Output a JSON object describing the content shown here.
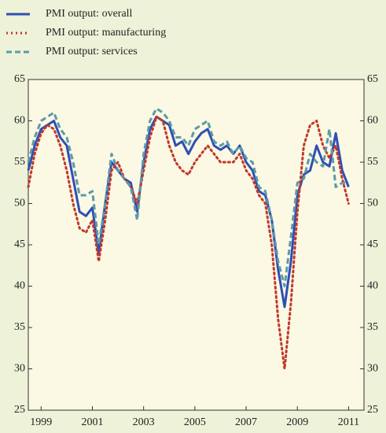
{
  "chart_data": {
    "type": "line",
    "x": [
      1999.0,
      1999.25,
      1999.5,
      1999.75,
      2000.0,
      2000.25,
      2000.5,
      2000.75,
      2001.0,
      2001.25,
      2001.5,
      2001.75,
      2002.0,
      2002.25,
      2002.5,
      2002.75,
      2003.0,
      2003.25,
      2003.5,
      2003.75,
      2004.0,
      2004.25,
      2004.5,
      2004.75,
      2005.0,
      2005.25,
      2005.5,
      2005.75,
      2006.0,
      2006.25,
      2006.5,
      2006.75,
      2007.0,
      2007.25,
      2007.5,
      2007.75,
      2008.0,
      2008.25,
      2008.5,
      2008.75,
      2009.0,
      2009.25,
      2009.5,
      2009.75,
      2010.0,
      2010.25,
      2010.5,
      2010.75,
      2011.0,
      2011.25,
      2011.5
    ],
    "series": [
      {
        "name": "PMI output: overall",
        "color": "#2f4fb5",
        "style": "solid",
        "values": [
          54,
          57,
          59,
          59.5,
          60,
          58,
          57,
          53,
          49,
          48.5,
          49.5,
          44,
          50,
          55,
          54,
          53,
          52.5,
          49,
          55,
          59,
          60.5,
          60,
          59.5,
          57,
          57.5,
          56,
          57.5,
          58.5,
          59,
          57,
          56.5,
          57,
          56,
          57,
          55,
          54,
          51.5,
          51,
          48,
          42,
          37.5,
          43,
          51,
          53.5,
          54,
          57,
          55,
          54.5,
          58.5,
          54,
          52
        ]
      },
      {
        "name": "PMI output: manufacturing",
        "color": "#c0392b",
        "style": "dotted",
        "values": [
          52,
          56,
          58.5,
          59.5,
          59,
          57,
          54,
          50,
          47,
          46.5,
          48,
          43,
          48,
          54,
          55,
          53,
          52,
          50,
          54,
          58,
          60.5,
          60,
          57,
          55,
          54,
          53.5,
          55,
          56,
          57,
          56,
          55,
          55,
          55,
          56,
          54,
          53,
          51,
          50,
          45,
          36,
          30,
          38,
          49,
          57,
          59.5,
          60,
          57,
          55.5,
          57,
          53,
          50
        ]
      },
      {
        "name": "PMI output: services",
        "color": "#5b9aa8",
        "style": "dashed",
        "values": [
          55,
          58,
          60,
          60.5,
          61,
          59,
          58,
          55,
          51,
          51,
          51.5,
          45,
          50,
          56,
          54,
          53,
          52,
          48,
          56,
          60,
          61.5,
          61,
          60,
          58,
          58,
          57,
          59,
          59.5,
          60,
          57.5,
          57,
          57.5,
          56,
          57,
          55.5,
          55,
          52,
          51.5,
          48,
          43,
          40,
          46,
          52.5,
          53,
          56,
          55,
          54.5,
          59,
          52,
          52.5,
          52.5
        ]
      }
    ],
    "xlim": [
      1999,
      2012.1
    ],
    "xticks": [
      {
        "value": 1999.5,
        "label": "1999"
      },
      {
        "value": 2001.5,
        "label": "2001"
      },
      {
        "value": 2003.5,
        "label": "2003"
      },
      {
        "value": 2005.5,
        "label": "2005"
      },
      {
        "value": 2007.5,
        "label": "2007"
      },
      {
        "value": 2009.5,
        "label": "2009"
      },
      {
        "value": 2011.5,
        "label": "2011"
      }
    ],
    "ylim": [
      25,
      65
    ],
    "yticks": [
      25,
      30,
      35,
      40,
      45,
      50,
      55,
      60,
      65
    ],
    "legend": "top-left"
  }
}
